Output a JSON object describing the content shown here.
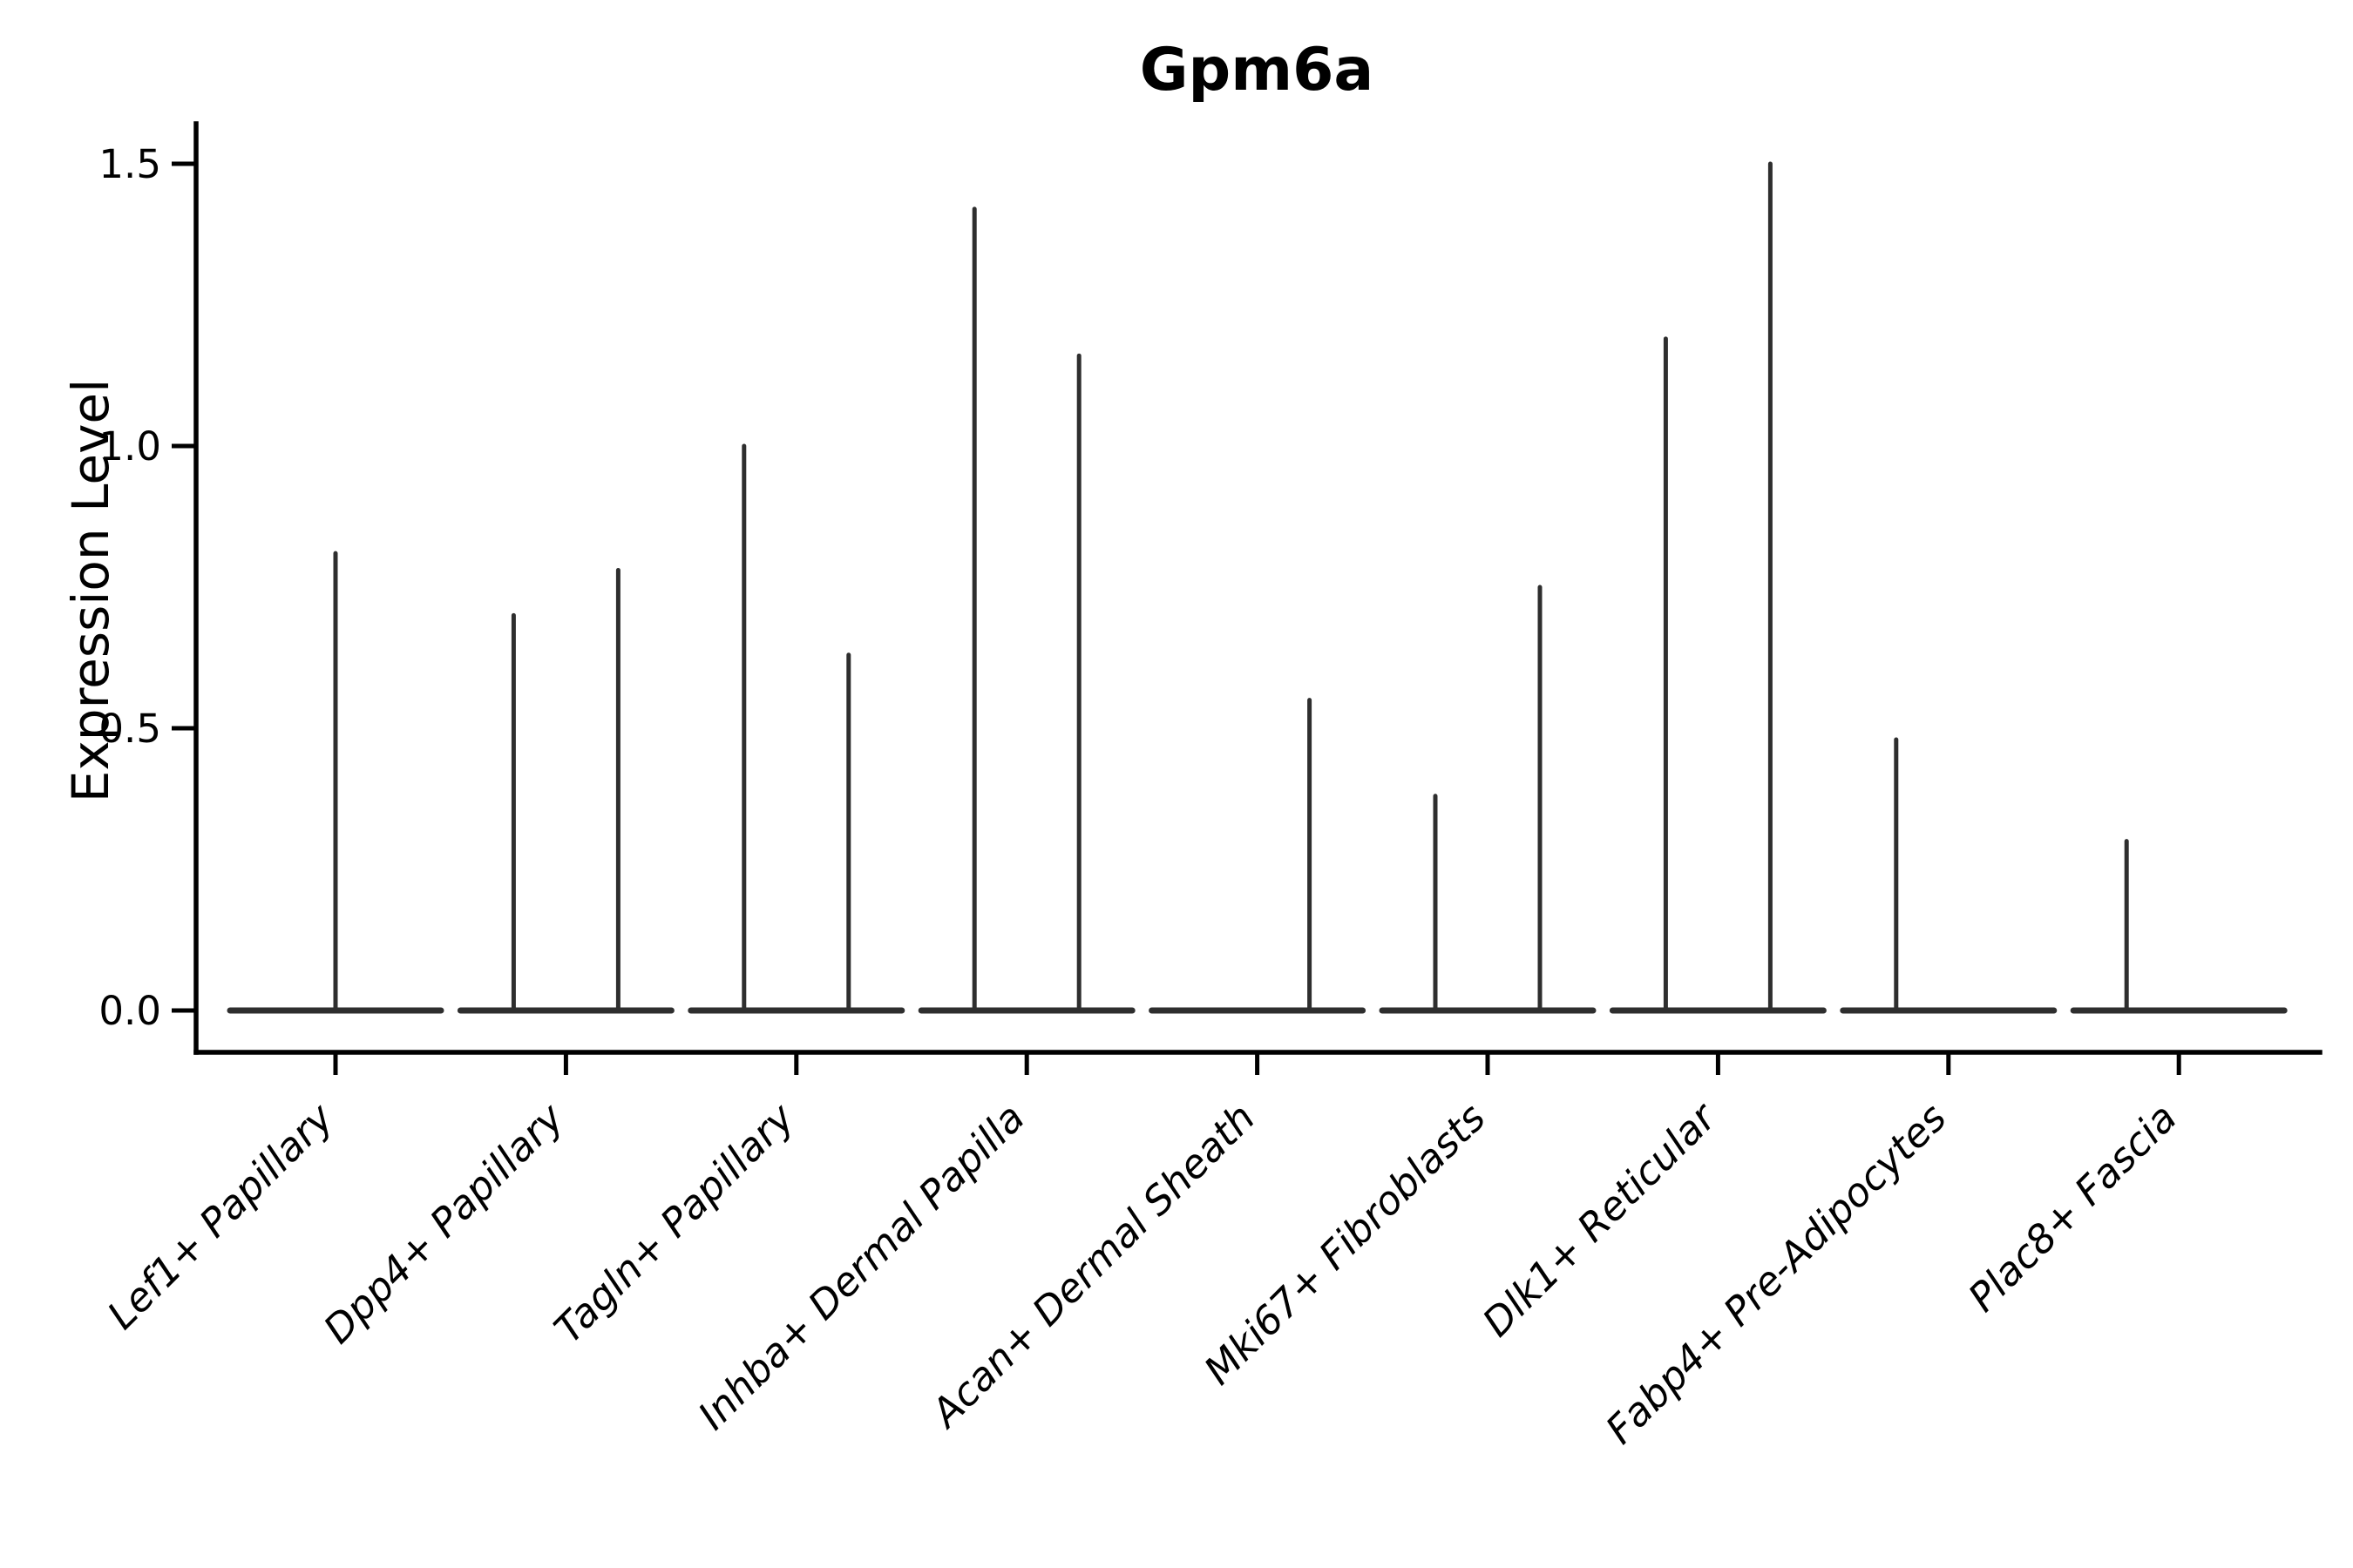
{
  "figure": {
    "background": "#ffffff",
    "colors": {
      "violin": "#2e2e2e",
      "axis": "#000000",
      "text": "#000000"
    }
  },
  "chart_data": {
    "type": "violin",
    "title": "Gpm6a",
    "xlabel": "",
    "ylabel": "Expression Level",
    "ylim": [
      -0.07,
      1.57
    ],
    "yticks": [
      "0.0",
      "0.5",
      "1.0",
      "1.5"
    ],
    "ytick_values": [
      0.0,
      0.5,
      1.0,
      1.5
    ],
    "grid": false,
    "legend": null,
    "categories": [
      "Lef1+ Papillary",
      "Dpp4+ Papillary",
      "Tagln+ Papillary",
      "Inhba+ Dermal Papilla",
      "Acan+ Dermal Sheath",
      "Mki67+ Fibroblasts",
      "Dlk1+ Reticular",
      "Fabp4+ Pre-Adipocytes",
      "Plac8+ Fascia"
    ],
    "violins": [
      {
        "category": "Lef1+ Papillary",
        "baseline_value": 0,
        "spikes": [
          {
            "slot": "center",
            "value": 0.81
          }
        ]
      },
      {
        "category": "Dpp4+ Papillary",
        "baseline_value": 0,
        "spikes": [
          {
            "slot": "left",
            "value": 0.7
          },
          {
            "slot": "right",
            "value": 0.78
          }
        ]
      },
      {
        "category": "Tagln+ Papillary",
        "baseline_value": 0,
        "spikes": [
          {
            "slot": "left",
            "value": 1.0
          },
          {
            "slot": "right",
            "value": 0.63
          }
        ]
      },
      {
        "category": "Inhba+ Dermal Papilla",
        "baseline_value": 0,
        "spikes": [
          {
            "slot": "left",
            "value": 1.42
          },
          {
            "slot": "right",
            "value": 1.16
          }
        ]
      },
      {
        "category": "Acan+ Dermal Sheath",
        "baseline_value": 0,
        "spikes": [
          {
            "slot": "right",
            "value": 0.55
          }
        ]
      },
      {
        "category": "Mki67+ Fibroblasts",
        "baseline_value": 0,
        "spikes": [
          {
            "slot": "left",
            "value": 0.38
          },
          {
            "slot": "right",
            "value": 0.75
          }
        ]
      },
      {
        "category": "Dlk1+ Reticular",
        "baseline_value": 0,
        "spikes": [
          {
            "slot": "left",
            "value": 1.19
          },
          {
            "slot": "right",
            "value": 1.5
          }
        ]
      },
      {
        "category": "Fabp4+ Pre-Adipocytes",
        "baseline_value": 0,
        "spikes": [
          {
            "slot": "left",
            "value": 0.48
          }
        ]
      },
      {
        "category": "Plac8+ Fascia",
        "baseline_value": 0,
        "spikes": [
          {
            "slot": "left",
            "value": 0.3
          }
        ]
      }
    ],
    "notes": "Violin plot; each violin is collapsed to a flat baseline at expression 0 with a thin vertical spike reaching the maximum expression value. Categories with two spikes have two side-by-side violins (slots left/right); 'center' denotes a single full-width violin."
  }
}
